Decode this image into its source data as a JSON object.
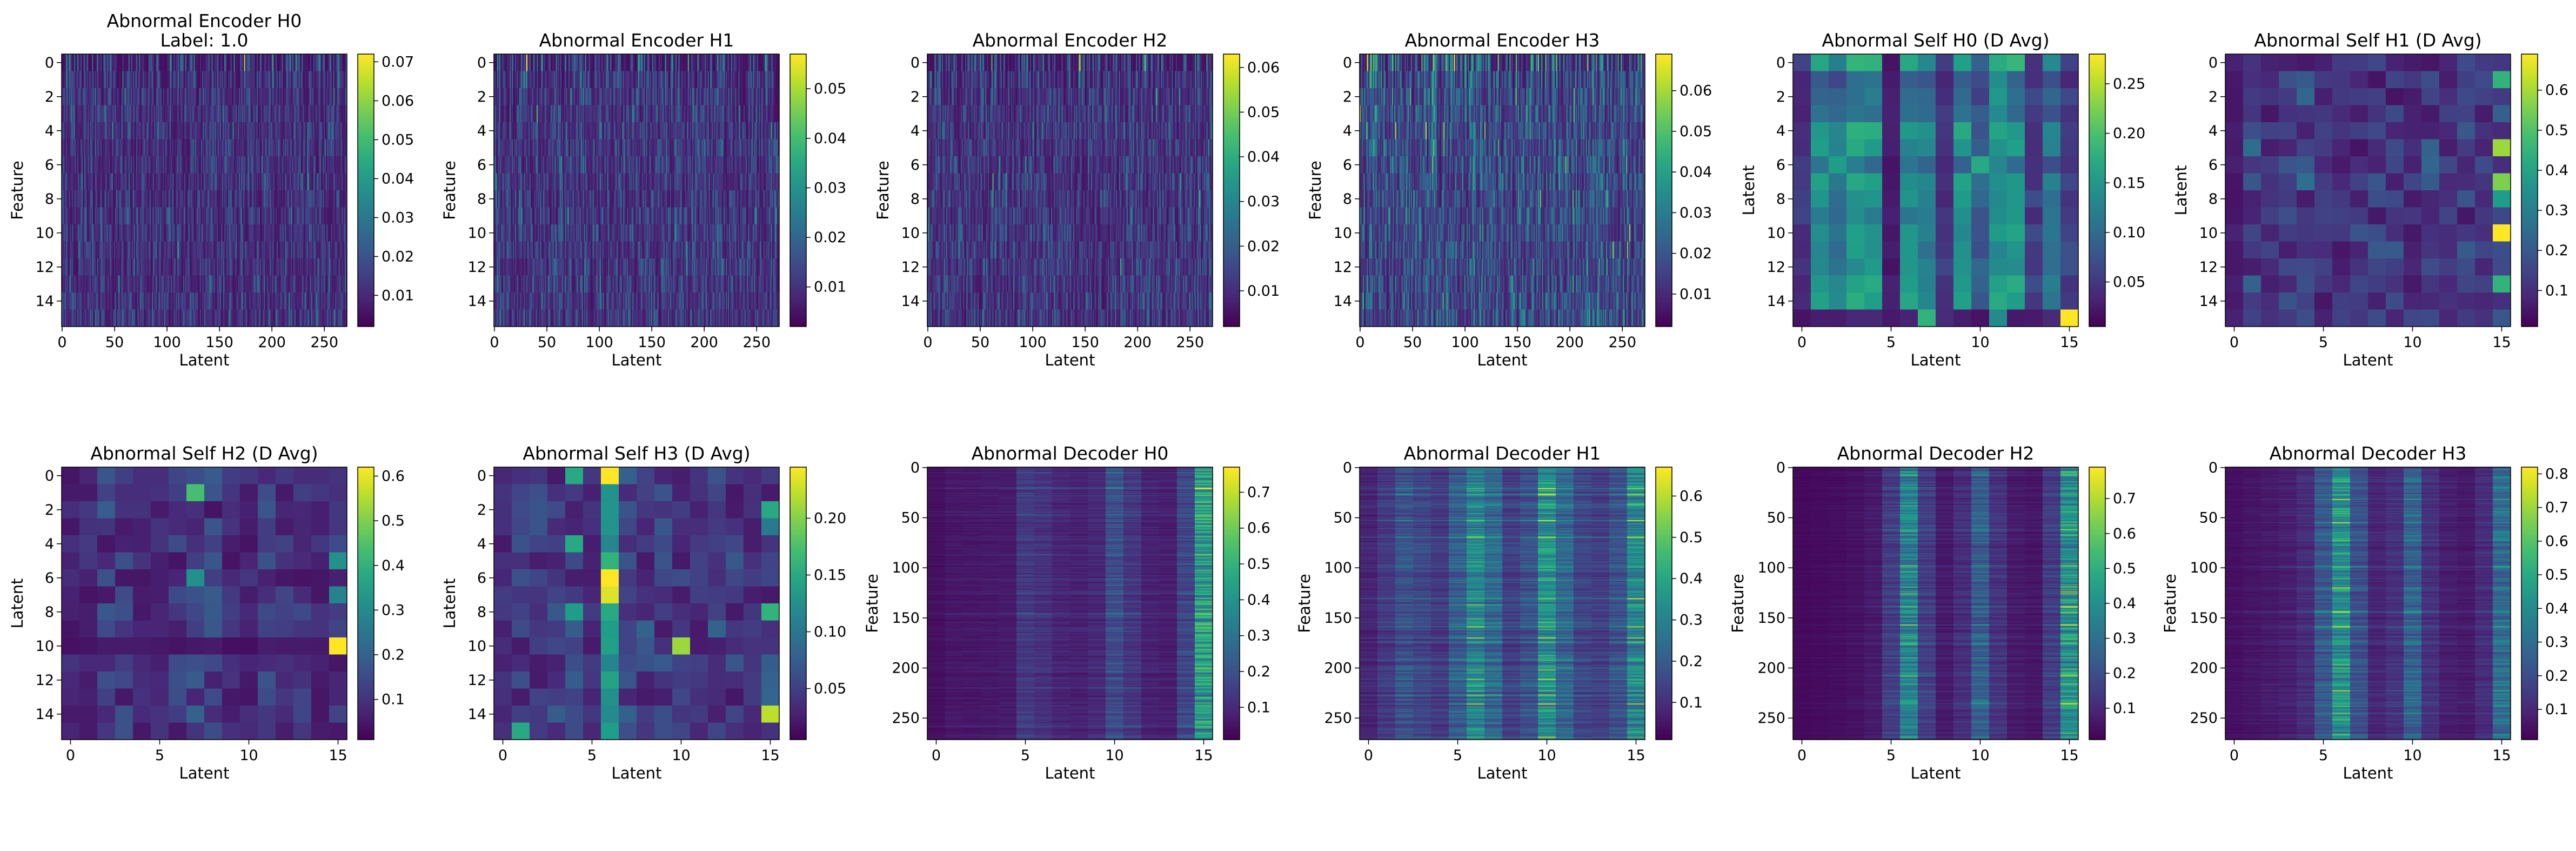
{
  "colormap": "viridis",
  "chart_data": [
    {
      "type": "heatmap",
      "title": "Abnormal Encoder H0",
      "subtitle": "Label: 1.0",
      "xlabel": "Latent",
      "ylabel": "Feature",
      "rows": 16,
      "cols": 272,
      "pattern": "encoder",
      "seed": 11,
      "cbar_ticks": [
        "0.01",
        "0.02",
        "0.03",
        "0.04",
        "0.05",
        "0.06",
        "0.07"
      ],
      "cbar_min": 0.002,
      "cbar_max": 0.072,
      "x_ticks": [
        "0",
        "50",
        "100",
        "150",
        "200",
        "250"
      ],
      "y_ticks": [
        "0",
        "2",
        "4",
        "6",
        "8",
        "10",
        "12",
        "14"
      ]
    },
    {
      "type": "heatmap",
      "title": "Abnormal Encoder H1",
      "xlabel": "Latent",
      "ylabel": "Feature",
      "rows": 16,
      "cols": 272,
      "pattern": "encoder",
      "seed": 23,
      "cbar_ticks": [
        "0.01",
        "0.02",
        "0.03",
        "0.04",
        "0.05"
      ],
      "cbar_min": 0.002,
      "cbar_max": 0.057,
      "x_ticks": [
        "0",
        "50",
        "100",
        "150",
        "200",
        "250"
      ],
      "y_ticks": [
        "0",
        "2",
        "4",
        "6",
        "8",
        "10",
        "12",
        "14"
      ]
    },
    {
      "type": "heatmap",
      "title": "Abnormal Encoder H2",
      "xlabel": "Latent",
      "ylabel": "Feature",
      "rows": 16,
      "cols": 272,
      "pattern": "encoder",
      "seed": 37,
      "cbar_ticks": [
        "0.01",
        "0.02",
        "0.03",
        "0.04",
        "0.05",
        "0.06"
      ],
      "cbar_min": 0.002,
      "cbar_max": 0.063,
      "x_ticks": [
        "0",
        "50",
        "100",
        "150",
        "200",
        "250"
      ],
      "y_ticks": [
        "0",
        "2",
        "4",
        "6",
        "8",
        "10",
        "12",
        "14"
      ]
    },
    {
      "type": "heatmap",
      "title": "Abnormal Encoder H3",
      "xlabel": "Latent",
      "ylabel": "Feature",
      "rows": 16,
      "cols": 272,
      "pattern": "encoder",
      "seed": 41,
      "cbar_ticks": [
        "0.01",
        "0.02",
        "0.03",
        "0.04",
        "0.05",
        "0.06"
      ],
      "cbar_min": 0.002,
      "cbar_max": 0.069,
      "x_ticks": [
        "0",
        "50",
        "100",
        "150",
        "200",
        "250"
      ],
      "y_ticks": [
        "0",
        "2",
        "4",
        "6",
        "8",
        "10",
        "12",
        "14"
      ]
    },
    {
      "type": "heatmap",
      "title": "Abnormal Self H0 (D Avg)",
      "xlabel": "Latent",
      "ylabel": "Latent",
      "rows": 16,
      "cols": 16,
      "pattern": "self0",
      "seed": 53,
      "cbar_ticks": [
        "0.05",
        "0.10",
        "0.15",
        "0.20",
        "0.25"
      ],
      "cbar_min": 0.005,
      "cbar_max": 0.28,
      "x_ticks": [
        "0",
        "5",
        "10",
        "15"
      ],
      "y_ticks": [
        "0",
        "2",
        "4",
        "6",
        "8",
        "10",
        "12",
        "14"
      ]
    },
    {
      "type": "heatmap",
      "title": "Abnormal Self H1 (D Avg)",
      "xlabel": "Latent",
      "ylabel": "Latent",
      "rows": 16,
      "cols": 16,
      "pattern": "self1",
      "seed": 61,
      "cbar_ticks": [
        "0.1",
        "0.2",
        "0.3",
        "0.4",
        "0.5",
        "0.6"
      ],
      "cbar_min": 0.01,
      "cbar_max": 0.69,
      "x_ticks": [
        "0",
        "5",
        "10",
        "15"
      ],
      "y_ticks": [
        "0",
        "2",
        "4",
        "6",
        "8",
        "10",
        "12",
        "14"
      ]
    },
    {
      "type": "heatmap",
      "title": "Abnormal Self H2 (D Avg)",
      "xlabel": "Latent",
      "ylabel": "Latent",
      "rows": 16,
      "cols": 16,
      "pattern": "self2",
      "seed": 71,
      "cbar_ticks": [
        "0.1",
        "0.2",
        "0.3",
        "0.4",
        "0.5",
        "0.6"
      ],
      "cbar_min": 0.01,
      "cbar_max": 0.62,
      "x_ticks": [
        "0",
        "5",
        "10",
        "15"
      ],
      "y_ticks": [
        "0",
        "2",
        "4",
        "6",
        "8",
        "10",
        "12",
        "14"
      ]
    },
    {
      "type": "heatmap",
      "title": "Abnormal Self H3 (D Avg)",
      "xlabel": "Latent",
      "ylabel": "Latent",
      "rows": 16,
      "cols": 16,
      "pattern": "self3",
      "seed": 83,
      "cbar_ticks": [
        "0.05",
        "0.10",
        "0.15",
        "0.20"
      ],
      "cbar_min": 0.005,
      "cbar_max": 0.245,
      "x_ticks": [
        "0",
        "5",
        "10",
        "15"
      ],
      "y_ticks": [
        "0",
        "2",
        "4",
        "6",
        "8",
        "10",
        "12",
        "14"
      ]
    },
    {
      "type": "heatmap",
      "title": "Abnormal Decoder H0",
      "xlabel": "Latent",
      "ylabel": "Feature",
      "rows": 272,
      "cols": 16,
      "pattern": "dec0",
      "seed": 97,
      "cbar_ticks": [
        "0.1",
        "0.2",
        "0.3",
        "0.4",
        "0.5",
        "0.6",
        "0.7"
      ],
      "cbar_min": 0.01,
      "cbar_max": 0.77,
      "x_ticks": [
        "0",
        "5",
        "10",
        "15"
      ],
      "y_ticks": [
        "0",
        "50",
        "100",
        "150",
        "200",
        "250"
      ]
    },
    {
      "type": "heatmap",
      "title": "Abnormal Decoder H1",
      "xlabel": "Latent",
      "ylabel": "Feature",
      "rows": 272,
      "cols": 16,
      "pattern": "dec1",
      "seed": 101,
      "cbar_ticks": [
        "0.1",
        "0.2",
        "0.3",
        "0.4",
        "0.5",
        "0.6"
      ],
      "cbar_min": 0.01,
      "cbar_max": 0.67,
      "x_ticks": [
        "0",
        "5",
        "10",
        "15"
      ],
      "y_ticks": [
        "0",
        "50",
        "100",
        "150",
        "200",
        "250"
      ]
    },
    {
      "type": "heatmap",
      "title": "Abnormal Decoder H2",
      "xlabel": "Latent",
      "ylabel": "Feature",
      "rows": 272,
      "cols": 16,
      "pattern": "dec2",
      "seed": 113,
      "cbar_ticks": [
        "0.1",
        "0.2",
        "0.3",
        "0.4",
        "0.5",
        "0.6",
        "0.7"
      ],
      "cbar_min": 0.01,
      "cbar_max": 0.79,
      "x_ticks": [
        "0",
        "5",
        "10",
        "15"
      ],
      "y_ticks": [
        "0",
        "50",
        "100",
        "150",
        "200",
        "250"
      ]
    },
    {
      "type": "heatmap",
      "title": "Abnormal Decoder H3",
      "xlabel": "Latent",
      "ylabel": "Feature",
      "rows": 272,
      "cols": 16,
      "pattern": "dec3",
      "seed": 127,
      "cbar_ticks": [
        "0.1",
        "0.2",
        "0.3",
        "0.4",
        "0.5",
        "0.6",
        "0.7",
        "0.8"
      ],
      "cbar_min": 0.01,
      "cbar_max": 0.82,
      "x_ticks": [
        "0",
        "5",
        "10",
        "15"
      ],
      "y_ticks": [
        "0",
        "50",
        "100",
        "150",
        "200",
        "250"
      ]
    }
  ]
}
